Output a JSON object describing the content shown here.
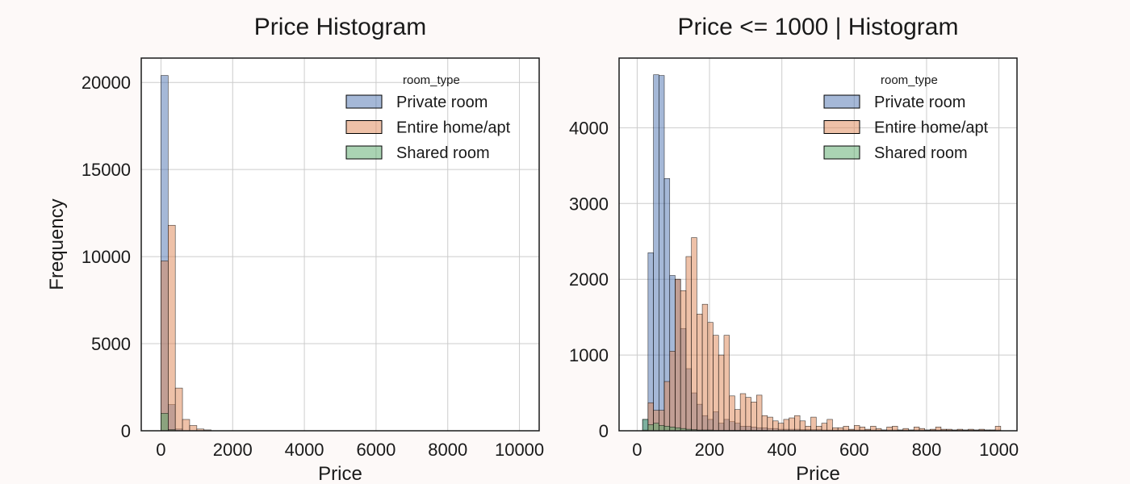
{
  "figure": {
    "background": "#fdf9f8"
  },
  "chart_data": [
    {
      "type": "histogram",
      "title": "Price Histogram",
      "xlabel": "Price",
      "ylabel": "Frequency",
      "xlim": [
        -550,
        10550
      ],
      "ylim": [
        0,
        21400
      ],
      "xticks": [
        0,
        2000,
        4000,
        6000,
        8000,
        10000
      ],
      "yticks": [
        0,
        5000,
        10000,
        15000,
        20000
      ],
      "grid": true,
      "legend": {
        "title": "room_type",
        "position": "top-right"
      },
      "bin_width": 200,
      "series": [
        {
          "name": "Private room",
          "color": "#4c72b0",
          "bins": [
            {
              "x0": 0,
              "x1": 200,
              "count": 20400
            },
            {
              "x0": 200,
              "x1": 400,
              "count": 1500
            },
            {
              "x0": 400,
              "x1": 600,
              "count": 100
            }
          ]
        },
        {
          "name": "Entire home/apt",
          "color": "#dd8452",
          "bins": [
            {
              "x0": 0,
              "x1": 200,
              "count": 9750
            },
            {
              "x0": 200,
              "x1": 400,
              "count": 11800
            },
            {
              "x0": 400,
              "x1": 600,
              "count": 2450
            },
            {
              "x0": 600,
              "x1": 800,
              "count": 650
            },
            {
              "x0": 800,
              "x1": 1000,
              "count": 300
            },
            {
              "x0": 1000,
              "x1": 1200,
              "count": 100
            },
            {
              "x0": 1200,
              "x1": 1400,
              "count": 50
            }
          ]
        },
        {
          "name": "Shared room",
          "color": "#55a868",
          "bins": [
            {
              "x0": 0,
              "x1": 200,
              "count": 1000
            },
            {
              "x0": 200,
              "x1": 400,
              "count": 60
            }
          ]
        }
      ]
    },
    {
      "type": "histogram",
      "title": "Price <= 1000 | Histogram",
      "xlabel": "Price",
      "ylabel": "",
      "xlim": [
        -50,
        1050
      ],
      "ylim": [
        0,
        4920
      ],
      "xticks": [
        0,
        200,
        400,
        600,
        800,
        1000
      ],
      "yticks": [
        0,
        1000,
        2000,
        3000,
        4000
      ],
      "grid": true,
      "legend": {
        "title": "room_type",
        "position": "top-right"
      },
      "bin_width": 15,
      "bin_start": 15,
      "series": [
        {
          "name": "Private room",
          "color": "#4c72b0",
          "counts": [
            150,
            2350,
            4700,
            4690,
            3330,
            2050,
            2000,
            1350,
            820,
            500,
            350,
            200,
            150,
            250,
            100,
            150,
            120,
            100,
            60,
            60,
            50,
            40,
            40,
            30,
            30,
            20,
            20,
            20,
            20,
            15,
            15,
            15,
            15,
            10,
            10,
            10,
            10,
            10,
            10,
            10,
            10,
            10,
            10,
            10,
            10,
            10,
            10,
            10,
            10,
            10,
            10,
            10,
            10,
            10,
            10,
            10,
            10,
            10,
            10,
            10,
            10,
            10,
            10,
            10,
            10,
            10
          ]
        },
        {
          "name": "Entire home/apt",
          "color": "#dd8452",
          "counts": [
            10,
            370,
            270,
            270,
            650,
            1050,
            2000,
            1850,
            2300,
            2550,
            1540,
            1670,
            1430,
            1260,
            1000,
            1260,
            460,
            280,
            490,
            440,
            380,
            470,
            200,
            180,
            130,
            100,
            150,
            170,
            200,
            130,
            60,
            180,
            60,
            100,
            150,
            40,
            40,
            60,
            20,
            70,
            50,
            20,
            60,
            30,
            10,
            50,
            60,
            10,
            30,
            10,
            50,
            30,
            10,
            20,
            50,
            20,
            20,
            10,
            20,
            10,
            20,
            10,
            20,
            10,
            10,
            60
          ]
        },
        {
          "name": "Shared room",
          "color": "#55a868",
          "counts": [
            150,
            80,
            100,
            70,
            60,
            50,
            40,
            30,
            20,
            15,
            10,
            10,
            10,
            5,
            5,
            5,
            5,
            5,
            5,
            5,
            5,
            5,
            5,
            0,
            0,
            0,
            0,
            0,
            0,
            0,
            0,
            0,
            0,
            0,
            0,
            0,
            0,
            0,
            0,
            0,
            0,
            0,
            0,
            0,
            0,
            0,
            0,
            0,
            0,
            0,
            0,
            0,
            0,
            0,
            0,
            0,
            0,
            0,
            0,
            0,
            0,
            0,
            0,
            0,
            0,
            0
          ]
        }
      ]
    }
  ]
}
